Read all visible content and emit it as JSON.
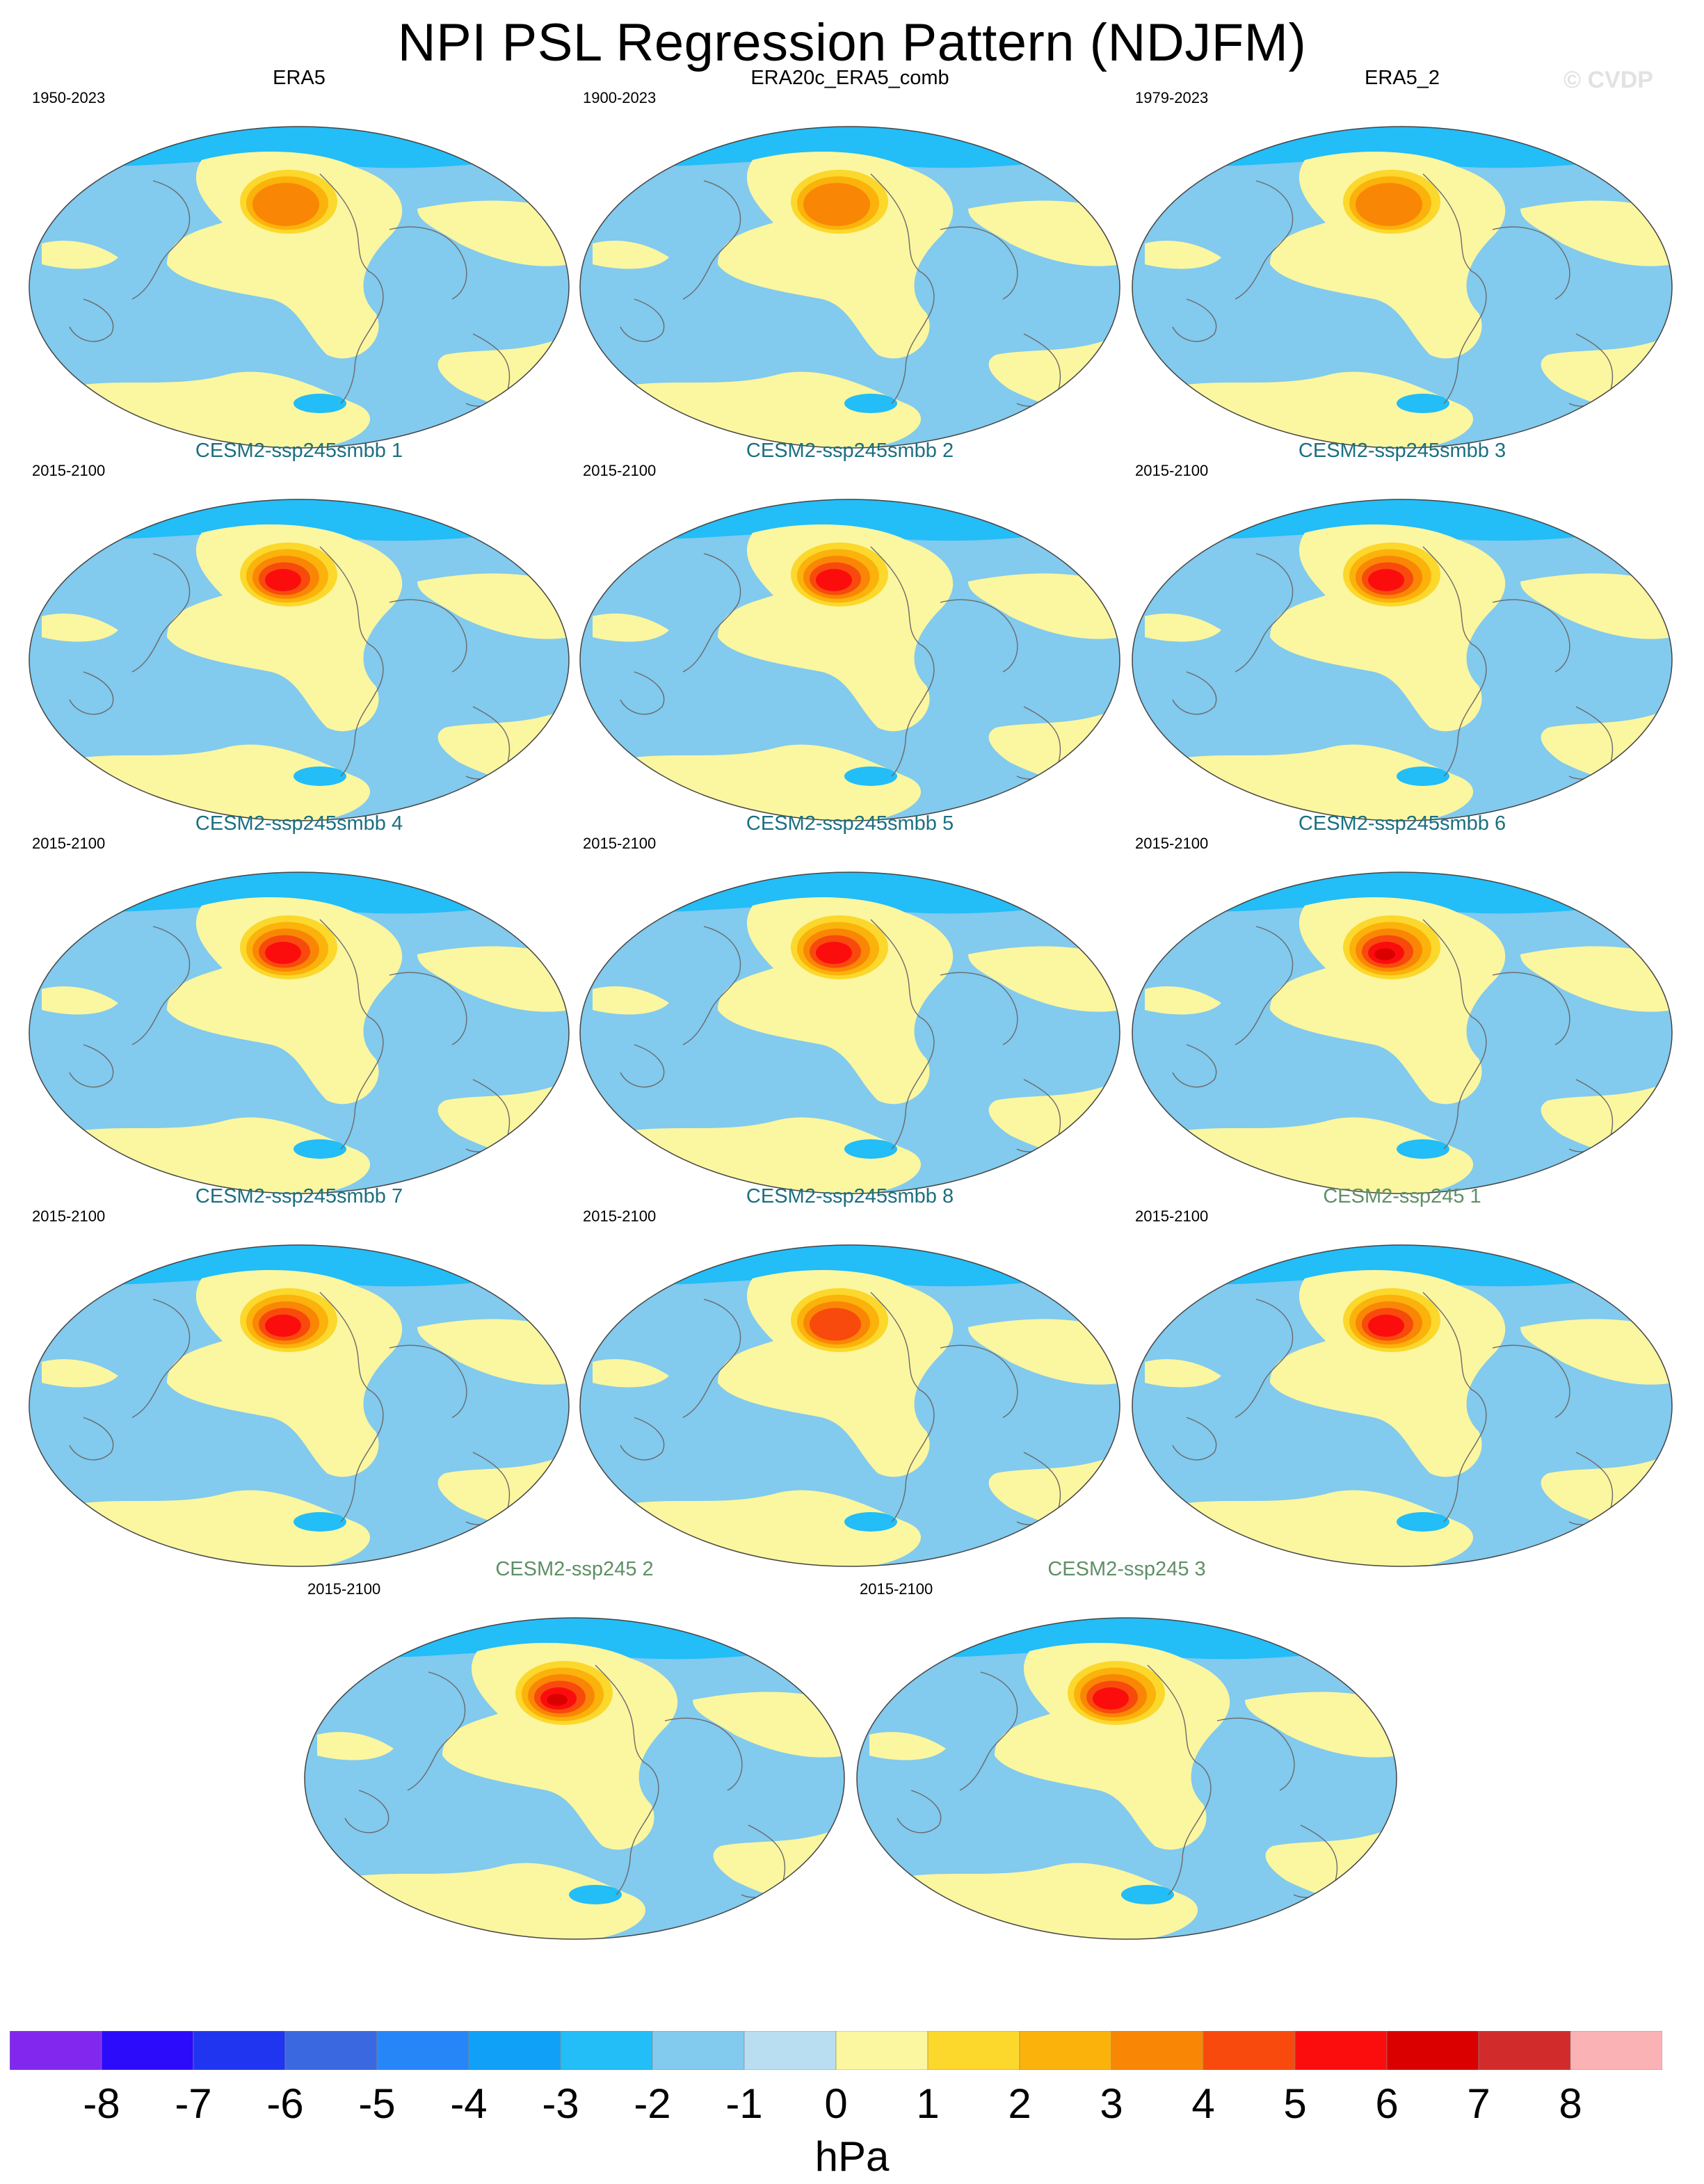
{
  "figure": {
    "title": "NPI PSL Regression Pattern (NDJFM)",
    "watermark": "© CVDP",
    "colors": {
      "land_outline": "#6a6a6a",
      "obs_title": "#000000",
      "smbb_title": "#1b6f80",
      "ssp_title": "#5e8f66"
    }
  },
  "panels": [
    {
      "title": "ERA5",
      "period": "1950-2023",
      "group": "obs",
      "peak": 3
    },
    {
      "title": "ERA20c_ERA5_comb",
      "period": "1900-2023",
      "group": "obs",
      "peak": 3
    },
    {
      "title": "ERA5_2",
      "period": "1979-2023",
      "group": "obs",
      "peak": 3
    },
    {
      "title": "CESM2-ssp245smbb 1",
      "period": "2015-2100",
      "group": "smbb",
      "peak": 5
    },
    {
      "title": "CESM2-ssp245smbb 2",
      "period": "2015-2100",
      "group": "smbb",
      "peak": 5
    },
    {
      "title": "CESM2-ssp245smbb 3",
      "period": "2015-2100",
      "group": "smbb",
      "peak": 5
    },
    {
      "title": "CESM2-ssp245smbb 4",
      "period": "2015-2100",
      "group": "smbb",
      "peak": 5
    },
    {
      "title": "CESM2-ssp245smbb 5",
      "period": "2015-2100",
      "group": "smbb",
      "peak": 5
    },
    {
      "title": "CESM2-ssp245smbb 6",
      "period": "2015-2100",
      "group": "smbb",
      "peak": 6
    },
    {
      "title": "CESM2-ssp245smbb 7",
      "period": "2015-2100",
      "group": "smbb",
      "peak": 5
    },
    {
      "title": "CESM2-ssp245smbb 8",
      "period": "2015-2100",
      "group": "smbb",
      "peak": 4
    },
    {
      "title": "CESM2-ssp245 1",
      "period": "2015-2100",
      "group": "ssp",
      "peak": 5
    },
    {
      "title": "CESM2-ssp245 2",
      "period": "2015-2100",
      "group": "ssp",
      "peak": 6
    },
    {
      "title": "CESM2-ssp245 3",
      "period": "2015-2100",
      "group": "ssp",
      "peak": 5
    }
  ],
  "colorbar": {
    "units": "hPa",
    "labels": [
      "-8",
      "-7",
      "-6",
      "-5",
      "-4",
      "-3",
      "-2",
      "-1",
      "0",
      "1",
      "2",
      "3",
      "4",
      "5",
      "6",
      "7",
      "8"
    ],
    "colors": [
      "#8228ee",
      "#2b0bfa",
      "#1f35f0",
      "#3a68e0",
      "#2686f8",
      "#10a0f8",
      "#23bdf7",
      "#82caee",
      "#b9def1",
      "#fbf6a0",
      "#fcd82c",
      "#fbb20b",
      "#fa8605",
      "#f84a0c",
      "#fc0d0d",
      "#db0000",
      "#d12b2b",
      "#fbb2b4"
    ]
  }
}
